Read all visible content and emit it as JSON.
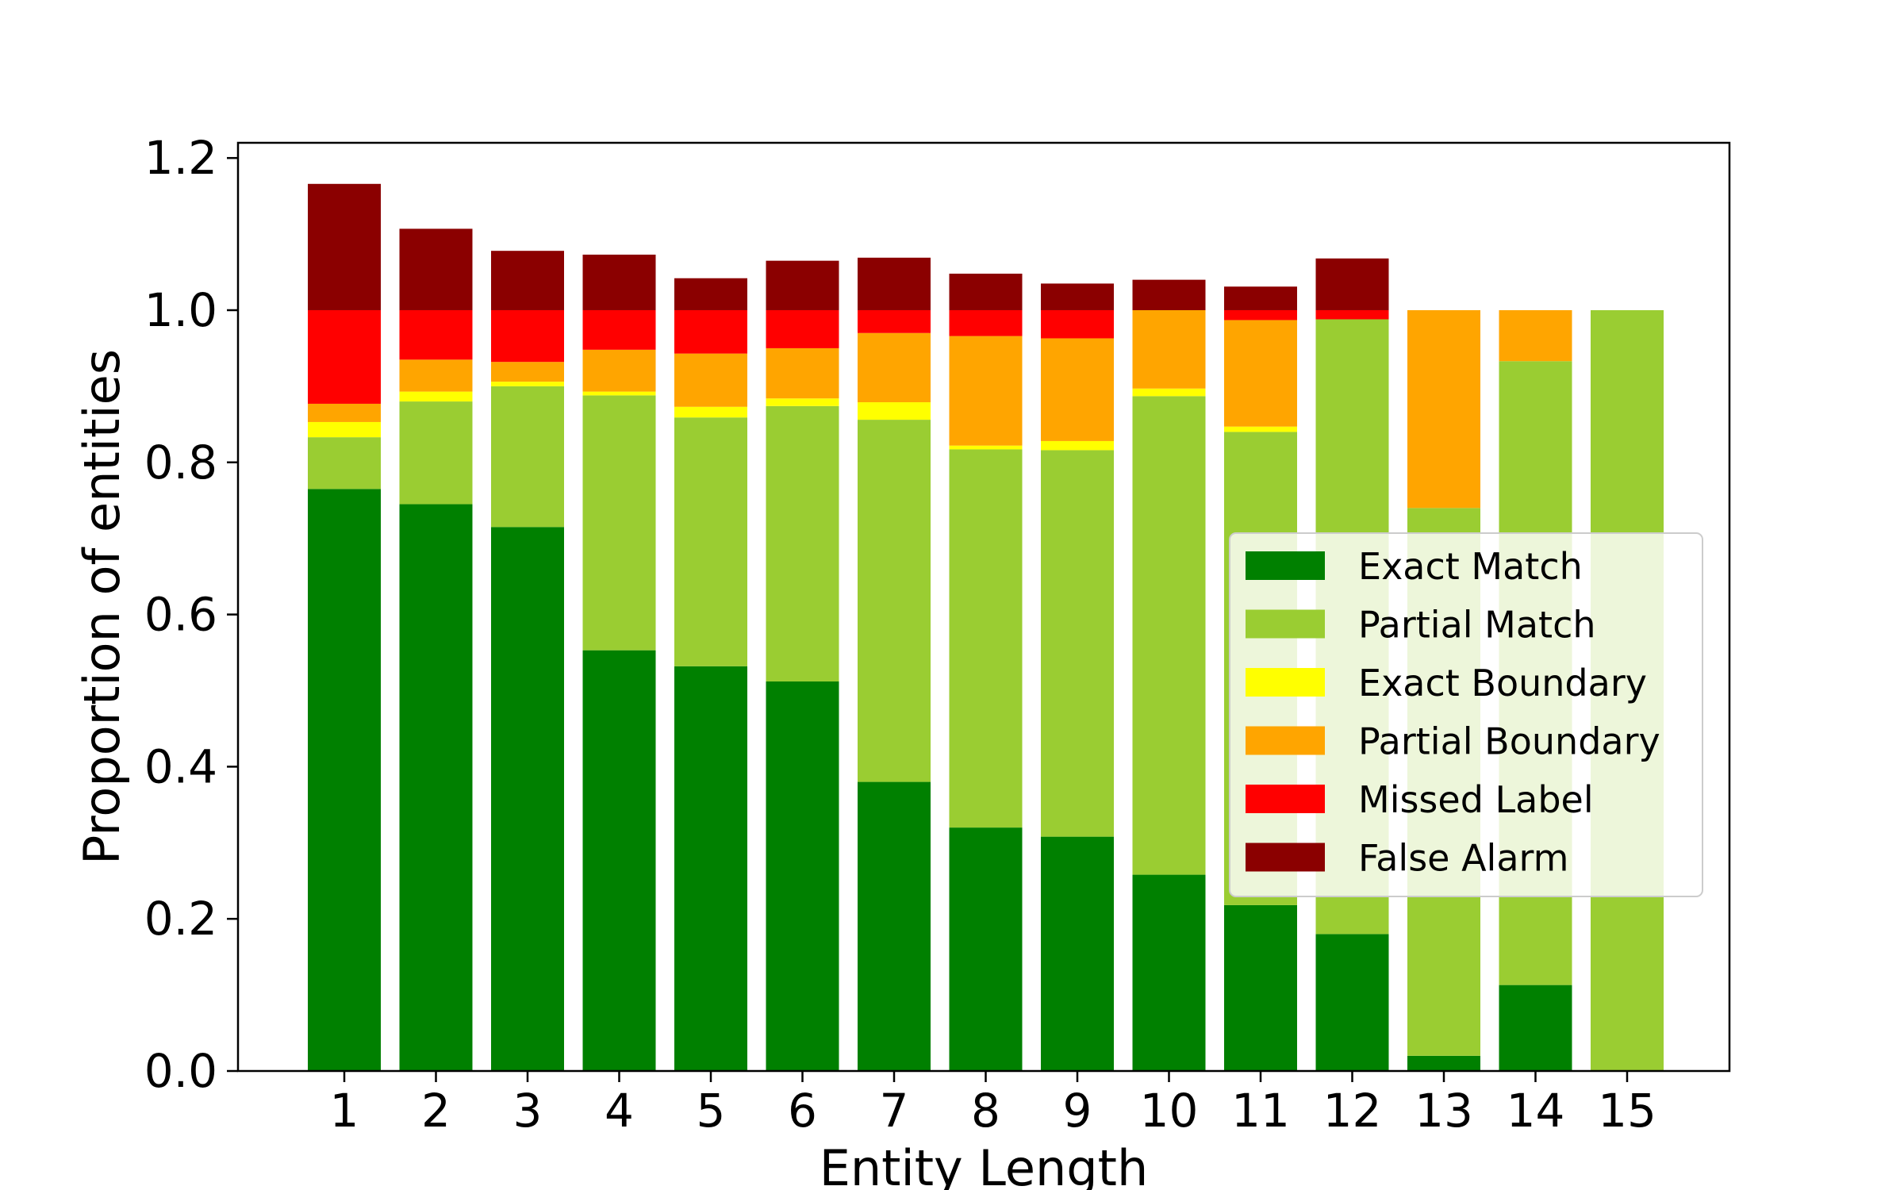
{
  "chart_data": {
    "type": "bar",
    "stacked": true,
    "categories": [
      "1",
      "2",
      "3",
      "4",
      "5",
      "6",
      "7",
      "8",
      "9",
      "10",
      "11",
      "12",
      "13",
      "14",
      "15"
    ],
    "series": [
      {
        "name": "Exact Match",
        "color": "#008000",
        "values": [
          0.765,
          0.745,
          0.715,
          0.553,
          0.532,
          0.512,
          0.38,
          0.32,
          0.308,
          0.258,
          0.218,
          0.18,
          0.02,
          0.113,
          0.0
        ]
      },
      {
        "name": "Partial Match",
        "color": "#9acd32",
        "values": [
          0.068,
          0.135,
          0.185,
          0.335,
          0.327,
          0.362,
          0.476,
          0.497,
          0.508,
          0.629,
          0.622,
          0.808,
          0.72,
          0.82,
          1.0
        ]
      },
      {
        "name": "Exact Boundary",
        "color": "#ffff00",
        "values": [
          0.02,
          0.013,
          0.006,
          0.005,
          0.014,
          0.01,
          0.023,
          0.005,
          0.012,
          0.01,
          0.007,
          0.0,
          0.0,
          0.0,
          0.0
        ]
      },
      {
        "name": "Partial Boundary",
        "color": "#ffa500",
        "values": [
          0.024,
          0.042,
          0.026,
          0.055,
          0.07,
          0.066,
          0.091,
          0.144,
          0.135,
          0.103,
          0.14,
          0.0,
          0.26,
          0.067,
          0.0
        ]
      },
      {
        "name": "Missed Label",
        "color": "#ff0000",
        "values": [
          0.123,
          0.065,
          0.068,
          0.052,
          0.057,
          0.05,
          0.03,
          0.034,
          0.037,
          0.0,
          0.013,
          0.012,
          0.0,
          0.0,
          0.0
        ]
      },
      {
        "name": "False Alarm",
        "color": "#8b0000",
        "values": [
          0.166,
          0.107,
          0.078,
          0.073,
          0.042,
          0.065,
          0.069,
          0.048,
          0.035,
          0.04,
          0.031,
          0.068,
          0.0,
          0.0,
          0.0
        ]
      }
    ],
    "xlabel": "Entity Length",
    "ylabel": "Proportion of entities",
    "ylim": [
      0,
      1.22
    ],
    "yticks": [
      0.0,
      0.2,
      0.4,
      0.6,
      0.8,
      1.0,
      1.2
    ],
    "ytick_labels": [
      "0.0",
      "0.2",
      "0.4",
      "0.6",
      "0.8",
      "1.0",
      "1.2"
    ],
    "grid": false,
    "legend_position": "center-right"
  }
}
